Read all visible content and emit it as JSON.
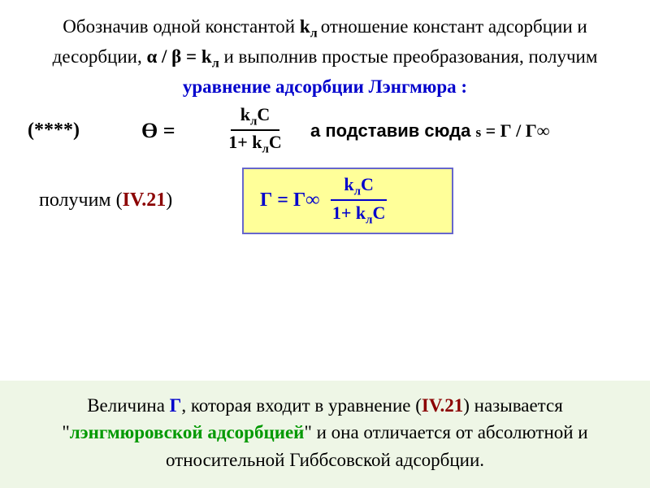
{
  "intro": {
    "part1": "Обозначив одной константой ",
    "k": "k",
    "ksub": "л ",
    "part2": "отношение констант адсорбции и десорбции,  ",
    "ratio_a": "α / β = k",
    "ratio_sub": "л",
    "part3": "   и выполнив простые преобразования, получим ",
    "blue": "уравнение адсорбции Лэнгмюра :"
  },
  "eq": {
    "marker": "(****)",
    "theta": "Ө =",
    "num_k": "k",
    "num_sub": "л",
    "num_C": "C",
    "den_pre": "1+ k",
    "den_sub": "л",
    "den_C": "C",
    "right_a": "а подставив сюда ",
    "right_s": "s",
    "right_eq": "  = Г / Г∞"
  },
  "line2": {
    "text_a": "получим (",
    "ref": "IV.21",
    "text_b": ")"
  },
  "box": {
    "left": "Г  = Г∞",
    "num_k": "k",
    "num_sub": "л",
    "num_C": "C",
    "den_pre": "1+ k",
    "den_sub": "л",
    "den_C": "C"
  },
  "footer": {
    "t1": "Величина ",
    "G": "Г",
    "t2": ", которая входит в уравнение (",
    "ref": "IV.21",
    "t3": ") называется \"",
    "term": "лэнгмюровской адсорбцией",
    "t4": "\" и она отличается от абсолютной и относительной Гиббсовской адсорбции."
  },
  "colors": {
    "blue": "#0000cc",
    "red": "#8b0000",
    "green": "#009900",
    "box_bg": "#ffff99",
    "box_border": "#6666cc",
    "footer_bg": "#eef6e6"
  }
}
